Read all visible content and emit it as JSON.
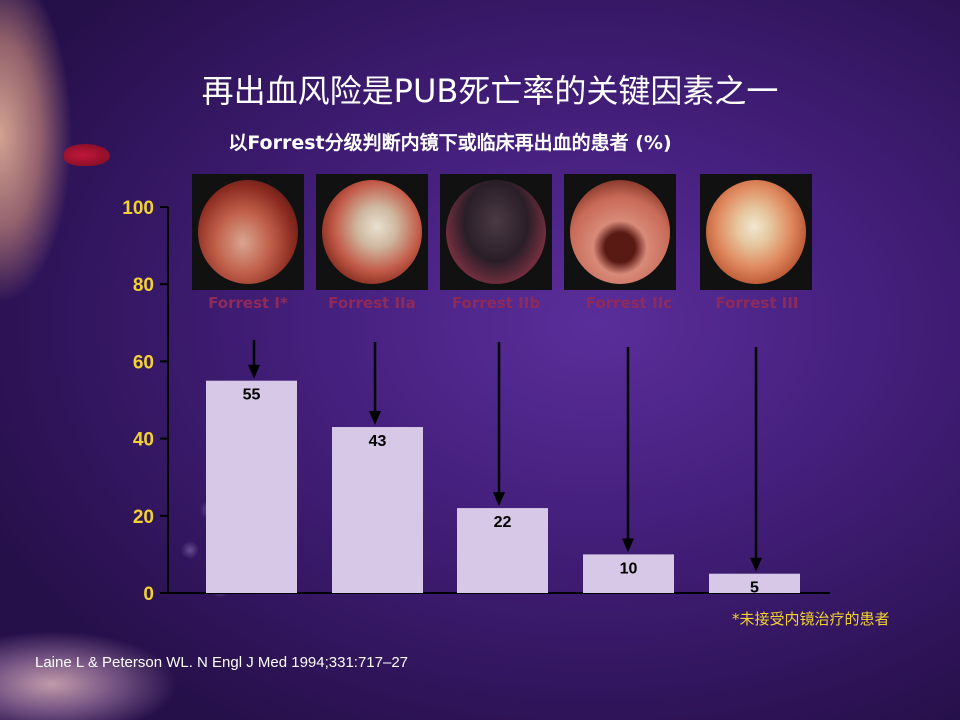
{
  "slide": {
    "title": "再出血风险是PUB死亡率的关键因素之一",
    "subtitle": "以Forrest分级判断内镜下或临床再出血的患者 (%)",
    "footnote": "*未接受内镜治疗的患者",
    "citation": "Laine L & Peterson WL. N Engl J Med 1994;331:717–27"
  },
  "colors": {
    "bar_fill": "#d6c8e6",
    "axis_label": "#f2d230",
    "forrest_label": "#8e2a5a",
    "background": "#46207e"
  },
  "chart_data": {
    "type": "bar",
    "categories": [
      "Forrest I*",
      "Forrest IIa",
      "Forrest IIb",
      "Forrest IIc",
      "Forrest III"
    ],
    "values": [
      55,
      43,
      22,
      10,
      5
    ],
    "data_labels": [
      "55",
      "43",
      "22",
      "10",
      "5"
    ],
    "title": "",
    "xlabel": "",
    "ylabel": "",
    "ylim": [
      0,
      100
    ],
    "yticks": [
      0,
      20,
      40,
      60,
      80,
      100
    ],
    "ytick_labels": [
      "0",
      "20",
      "40",
      "60",
      "80",
      "100"
    ],
    "grid": false,
    "legend": "none"
  },
  "images": [
    {
      "name": "endoscopy-forrest-i-image"
    },
    {
      "name": "endoscopy-forrest-iia-image"
    },
    {
      "name": "endoscopy-forrest-iib-image"
    },
    {
      "name": "endoscopy-forrest-iic-image"
    },
    {
      "name": "endoscopy-forrest-iii-image"
    }
  ]
}
